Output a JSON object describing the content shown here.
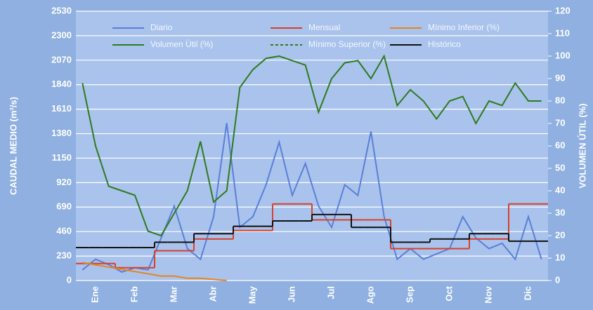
{
  "chart_data": {
    "type": "line",
    "ylabel": "CAUDAL MEDIO (m³/s)",
    "y2label": "VOLUMEN ÚTIL (%)",
    "categories": [
      null,
      "Ene",
      null,
      null,
      "Feb",
      null,
      null,
      "Mar",
      null,
      null,
      "Abr",
      null,
      null,
      "May",
      null,
      null,
      "Jun",
      null,
      null,
      "Jul",
      null,
      null,
      "Ago",
      null,
      null,
      "Sep",
      null,
      null,
      "Oct",
      null,
      null,
      "Nov",
      null,
      null,
      "Dic",
      null
    ],
    "ylim": [
      0,
      2530
    ],
    "yticks": [
      0,
      230,
      460,
      690,
      920,
      1150,
      1380,
      1610,
      1840,
      2070,
      2300,
      2530
    ],
    "y2lim": [
      0,
      120
    ],
    "y2ticks": [
      0,
      10,
      20,
      30,
      40,
      50,
      60,
      70,
      80,
      90,
      100,
      110,
      120
    ],
    "grid": true,
    "series": [
      {
        "name": "Diario",
        "color": "#5b7fd8",
        "values": [
          100,
          200,
          150,
          80,
          120,
          100,
          400,
          700,
          300,
          200,
          600,
          1480,
          500,
          600,
          900,
          1300,
          800,
          1100,
          700,
          500,
          900,
          800,
          1400,
          600,
          200,
          300,
          200,
          250,
          300,
          600,
          400,
          300,
          350,
          200,
          600,
          200
        ]
      },
      {
        "name": "Mensual",
        "color": "#d8402a",
        "step": true,
        "values": [
          160,
          160,
          160,
          120,
          120,
          120,
          280,
          280,
          280,
          390,
          390,
          390,
          470,
          470,
          470,
          720,
          720,
          720,
          570,
          570,
          570,
          570,
          570,
          570,
          300,
          300,
          300,
          300,
          300,
          300,
          390,
          390,
          390,
          720,
          720,
          720
        ]
      },
      {
        "name": "Mínimo Inferior (%)",
        "color": "#e8841e",
        "axis": "y2",
        "values": [
          8,
          7,
          6,
          5,
          4,
          3,
          2,
          2,
          1,
          1,
          0.5,
          0,
          null,
          null,
          null,
          null,
          null,
          null,
          null,
          null,
          null,
          null,
          null,
          null,
          null,
          null,
          null,
          null,
          null,
          null,
          null,
          null,
          null,
          null,
          null,
          null
        ]
      },
      {
        "name": "Volumen Útil (%)",
        "color": "#2f7a1e",
        "axis": "y2",
        "values": [
          88,
          60,
          42,
          40,
          38,
          22,
          20,
          30,
          40,
          62,
          35,
          40,
          86,
          94,
          99,
          100,
          98,
          96,
          75,
          90,
          97,
          98,
          90,
          100,
          78,
          85,
          80,
          72,
          80,
          82,
          70,
          80,
          78,
          88,
          80,
          80
        ]
      },
      {
        "name": "Mínimo Superior (%)",
        "color": "#2f7a1e",
        "axis": "y2",
        "dashed": true,
        "values": [
          null,
          null,
          null,
          null,
          null,
          null,
          null,
          null,
          null,
          null,
          null,
          null,
          null,
          null,
          null,
          null,
          null,
          null,
          null,
          null,
          null,
          null,
          null,
          null,
          null,
          null,
          null,
          null,
          null,
          null,
          null,
          null,
          null,
          null,
          null,
          null
        ]
      },
      {
        "name": "Histórico",
        "color": "#111111",
        "step": true,
        "values": [
          310,
          310,
          310,
          310,
          310,
          310,
          360,
          360,
          360,
          440,
          440,
          440,
          510,
          510,
          510,
          560,
          560,
          560,
          620,
          620,
          620,
          500,
          500,
          500,
          360,
          360,
          360,
          390,
          390,
          390,
          440,
          440,
          440,
          370,
          370,
          370
        ]
      }
    ]
  }
}
